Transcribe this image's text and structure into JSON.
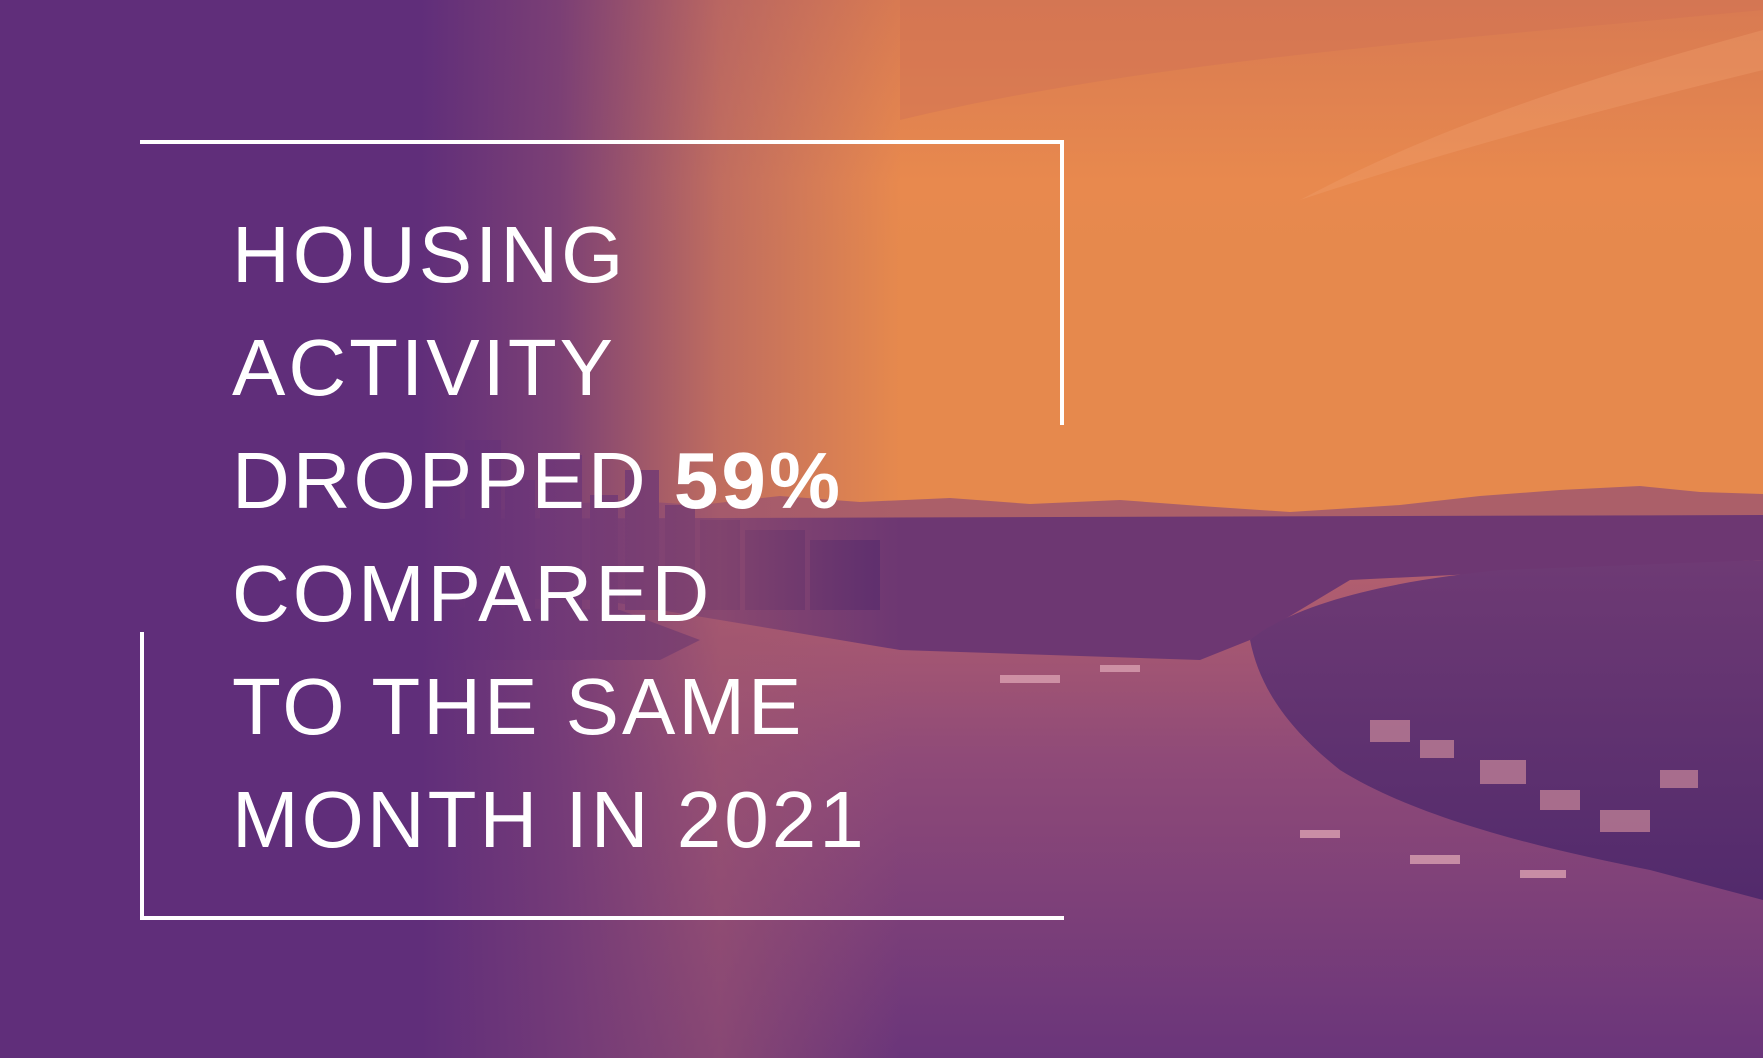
{
  "headline": {
    "lines": {
      "l1": "HOUSING",
      "l2": "ACTIVITY",
      "l3_prefix": "DROPPED ",
      "l3_stat": "59%",
      "l4": "COMPARED",
      "l5": "TO THE SAME",
      "l6": "MONTH IN 2021"
    }
  },
  "colors": {
    "purple": "#5f2f7a",
    "orange": "#e8894e",
    "text": "#ffffff"
  },
  "background": {
    "description_icon": "city-lake-aerial-photo"
  }
}
